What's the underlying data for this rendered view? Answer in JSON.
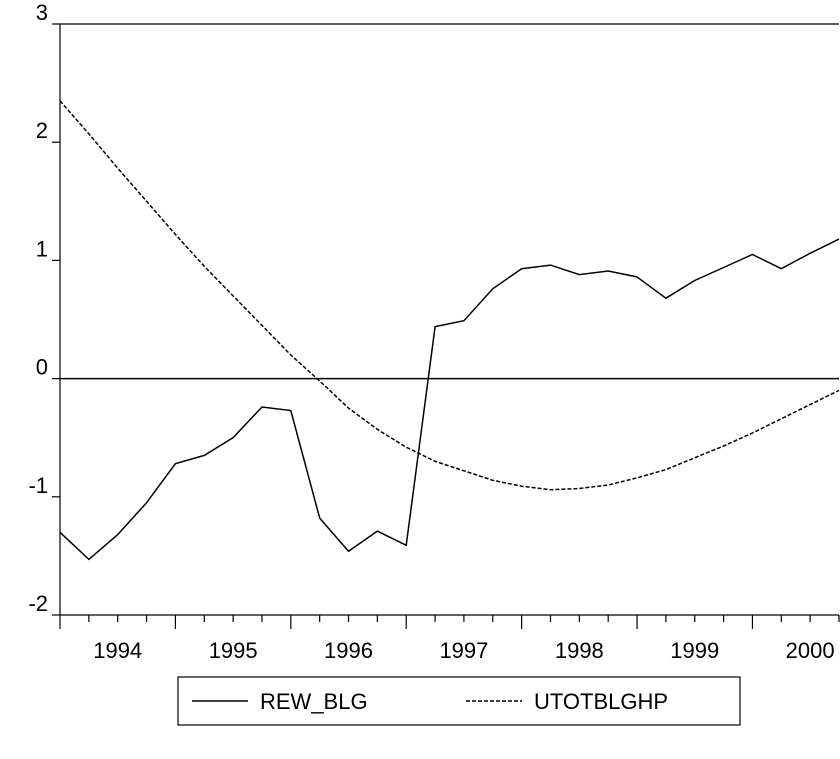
{
  "chart_data": {
    "type": "line",
    "categories": [
      "1994",
      null,
      null,
      null,
      "1995",
      null,
      null,
      null,
      "1996",
      null,
      null,
      null,
      "1997",
      null,
      null,
      null,
      "1998",
      null,
      null,
      null,
      "1999",
      null,
      null,
      null,
      "2000",
      null,
      null,
      null
    ],
    "series": [
      {
        "name": "REW_BLG",
        "color": "#000000",
        "dash": "solid",
        "values": [
          -1.3,
          -1.53,
          -1.32,
          -1.05,
          -0.72,
          -0.65,
          -0.5,
          -0.24,
          -0.27,
          -1.18,
          -1.46,
          -1.29,
          -1.41,
          0.44,
          0.49,
          0.76,
          0.93,
          0.96,
          0.88,
          0.91,
          0.86,
          0.68,
          0.83,
          0.94,
          1.05,
          0.93,
          1.06,
          1.18
        ]
      },
      {
        "name": "UTOTBLGHP",
        "color": "#000000",
        "dash": "dashed",
        "values": [
          2.35,
          2.07,
          1.78,
          1.5,
          1.22,
          0.95,
          0.7,
          0.45,
          0.2,
          -0.02,
          -0.25,
          -0.43,
          -0.58,
          -0.7,
          -0.78,
          -0.86,
          -0.91,
          -0.94,
          -0.93,
          -0.9,
          -0.84,
          -0.77,
          -0.67,
          -0.57,
          -0.46,
          -0.34,
          -0.22,
          -0.1
        ]
      }
    ],
    "ylim": [
      -2,
      3
    ],
    "yticks": [
      -2,
      -1,
      0,
      1,
      2,
      3
    ],
    "zero_line": true,
    "legend": "bottom"
  }
}
